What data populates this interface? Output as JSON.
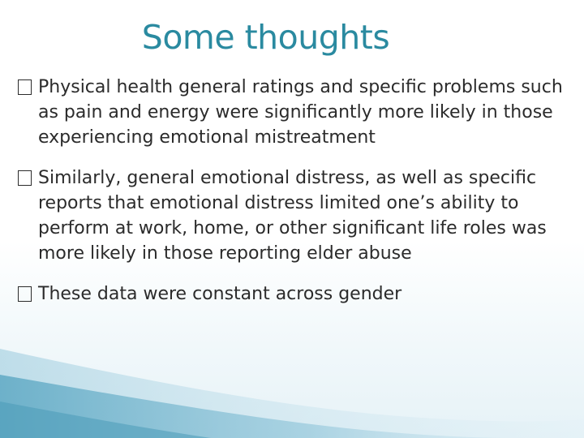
{
  "slide": {
    "title": "Some thoughts",
    "accent_color": "#2a8aa0",
    "bullet_icon": "unsupported-glyph-box",
    "bullets": [
      "Physical health general ratings and specific problems such as pain and energy were significantly more likely in those experiencing emotional mistreatment",
      "Similarly, general emotional distress, as well as specific reports that emotional distress limited one’s ability to perform at work, home, or other significant life roles was more likely in those reporting elder abuse",
      "These data were constant across gender"
    ]
  }
}
